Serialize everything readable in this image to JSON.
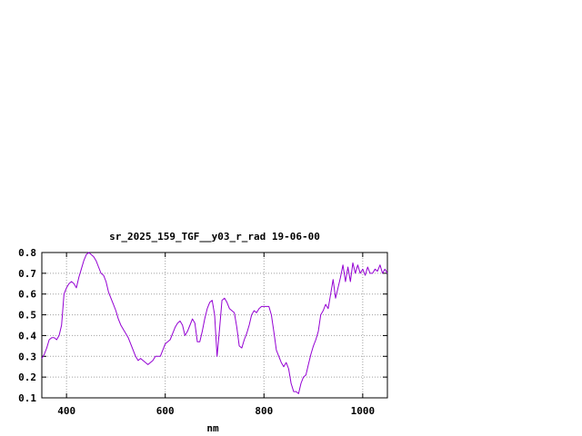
{
  "chart_data": {
    "type": "line",
    "title": "sr_2025_159_TGF__y03_r_rad 19-06-00",
    "xlabel": "nm",
    "ylabel": "",
    "xlim": [
      350,
      1050
    ],
    "ylim": [
      0.1,
      0.8
    ],
    "xticks": [
      400,
      600,
      800,
      1000
    ],
    "yticks": [
      0.1,
      0.2,
      0.3,
      0.4,
      0.5,
      0.6,
      0.7,
      0.8
    ],
    "grid": true,
    "line_color": "#9400d3",
    "series": [
      {
        "x": [
          350,
          355,
          360,
          365,
          370,
          375,
          380,
          385,
          390,
          395,
          400,
          405,
          410,
          415,
          420,
          425,
          430,
          435,
          440,
          445,
          450,
          455,
          460,
          465,
          470,
          475,
          480,
          485,
          490,
          495,
          500,
          505,
          510,
          515,
          520,
          525,
          530,
          535,
          540,
          545,
          550,
          555,
          560,
          565,
          570,
          575,
          580,
          585,
          590,
          595,
          600,
          605,
          610,
          615,
          620,
          625,
          630,
          635,
          640,
          645,
          650,
          655,
          660,
          665,
          670,
          675,
          680,
          685,
          690,
          695,
          700,
          705,
          710,
          715,
          720,
          725,
          730,
          735,
          740,
          745,
          750,
          755,
          760,
          765,
          770,
          775,
          780,
          785,
          790,
          795,
          800,
          805,
          810,
          815,
          820,
          825,
          830,
          835,
          840,
          845,
          850,
          855,
          860,
          865,
          870,
          875,
          880,
          885,
          890,
          895,
          900,
          905,
          910,
          915,
          920,
          925,
          930,
          935,
          940,
          945,
          950,
          955,
          960,
          965,
          970,
          975,
          980,
          985,
          990,
          995,
          1000,
          1005,
          1010,
          1015,
          1020,
          1025,
          1030,
          1035,
          1040,
          1045,
          1050
        ],
        "y": [
          0.29,
          0.31,
          0.34,
          0.38,
          0.39,
          0.39,
          0.38,
          0.4,
          0.45,
          0.6,
          0.63,
          0.65,
          0.66,
          0.65,
          0.63,
          0.68,
          0.72,
          0.76,
          0.79,
          0.8,
          0.79,
          0.78,
          0.76,
          0.73,
          0.7,
          0.69,
          0.66,
          0.61,
          0.58,
          0.55,
          0.52,
          0.48,
          0.45,
          0.43,
          0.41,
          0.39,
          0.36,
          0.33,
          0.3,
          0.28,
          0.29,
          0.28,
          0.27,
          0.26,
          0.27,
          0.28,
          0.3,
          0.3,
          0.3,
          0.33,
          0.36,
          0.37,
          0.38,
          0.41,
          0.44,
          0.46,
          0.47,
          0.45,
          0.4,
          0.42,
          0.45,
          0.48,
          0.46,
          0.37,
          0.37,
          0.42,
          0.48,
          0.53,
          0.56,
          0.57,
          0.5,
          0.3,
          0.43,
          0.57,
          0.58,
          0.56,
          0.53,
          0.52,
          0.51,
          0.44,
          0.35,
          0.34,
          0.38,
          0.41,
          0.45,
          0.5,
          0.52,
          0.51,
          0.53,
          0.54,
          0.54,
          0.54,
          0.54,
          0.5,
          0.42,
          0.33,
          0.3,
          0.27,
          0.25,
          0.27,
          0.24,
          0.17,
          0.13,
          0.13,
          0.12,
          0.17,
          0.2,
          0.21,
          0.26,
          0.31,
          0.35,
          0.38,
          0.42,
          0.5,
          0.52,
          0.55,
          0.53,
          0.6,
          0.67,
          0.58,
          0.63,
          0.68,
          0.74,
          0.66,
          0.73,
          0.66,
          0.75,
          0.7,
          0.74,
          0.7,
          0.72,
          0.69,
          0.73,
          0.7,
          0.7,
          0.72,
          0.71,
          0.74,
          0.7,
          0.72,
          0.7
        ]
      }
    ]
  }
}
